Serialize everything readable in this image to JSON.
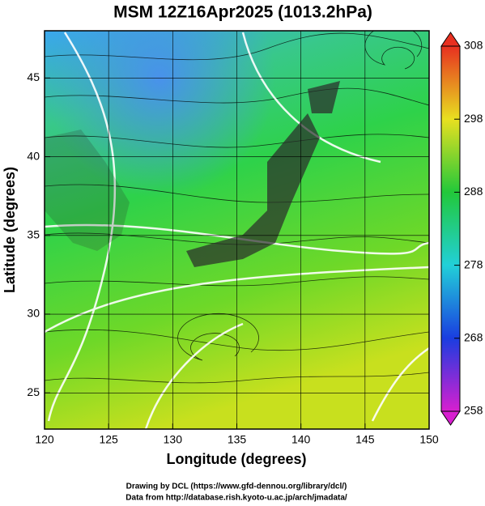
{
  "chart_data": {
    "type": "map",
    "title": "MSM 12Z16Apr2025 (1013.2hPa)",
    "xlabel": "Longitude (degrees)",
    "ylabel": "Latitude  (degrees)",
    "xlim": [
      120,
      150
    ],
    "xticks": [
      120,
      125,
      130,
      135,
      140,
      145,
      150
    ],
    "ylim": [
      22.7,
      48
    ],
    "yticks": [
      25,
      30,
      35,
      40,
      45
    ],
    "clim": [
      258,
      308
    ],
    "cticks": [
      258,
      268,
      278,
      288,
      298,
      308
    ],
    "grid": true,
    "credits": [
      "Drawing by DCL (https://www.gfd-dennou.org/library/dcl/)",
      "Data from http://database.rish.kyoto-u.ac.jp/arch/jmadata/"
    ]
  }
}
